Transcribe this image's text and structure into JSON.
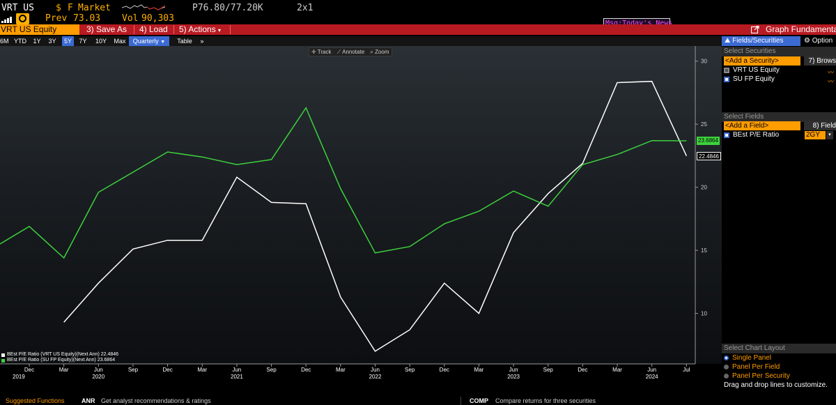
{
  "ticker": {
    "symbol": "VRT US",
    "currency": "$",
    "source_flag": "F",
    "market_label": "Market",
    "prev_label": "Prev",
    "prev_value": "73.03",
    "vol_label": "Vol",
    "vol_value": "90,303",
    "price_range": "P76.80/77.20K",
    "size": "2x1"
  },
  "command_bar": {
    "security": "VRT US Equity",
    "save_as": "3) Save As",
    "load": "4) Load",
    "actions": "5) Actions",
    "actions_arrow": "▾",
    "news": "Msg:Today's News",
    "graph_title": "Graph Fundamental"
  },
  "periods": [
    {
      "label": "6M",
      "active": false
    },
    {
      "label": "YTD",
      "active": false
    },
    {
      "label": "1Y",
      "active": false
    },
    {
      "label": "3Y",
      "active": false
    },
    {
      "label": "5Y",
      "active": true
    },
    {
      "label": "7Y",
      "active": false
    },
    {
      "label": "10Y",
      "active": false
    },
    {
      "label": "Max",
      "active": false
    }
  ],
  "frequency": "Quarterly",
  "frequency_arrow": "▼",
  "table_label": "Table",
  "more_label": "»",
  "chart_tools": {
    "track": "Track",
    "annotate": "Annotate",
    "zoom": "Zoom"
  },
  "chart_data": {
    "type": "line",
    "ylim": [
      6,
      31.2
    ],
    "yticks": [
      10,
      15,
      20,
      25,
      30
    ],
    "x_ticks": [
      "Dec",
      "Mar",
      "Jun",
      "Sep",
      "Dec",
      "Mar",
      "Jun",
      "Sep",
      "Dec",
      "Mar",
      "Jun",
      "Sep",
      "Dec",
      "Mar",
      "Jun",
      "Sep",
      "Dec",
      "Mar",
      "Jun",
      "Jul"
    ],
    "years": [
      {
        "label": "2019",
        "tick": 0
      },
      {
        "label": "2020",
        "tick": 2
      },
      {
        "label": "2021",
        "tick": 6
      },
      {
        "label": "2022",
        "tick": 10
      },
      {
        "label": "2023",
        "tick": 14
      },
      {
        "label": "2024",
        "tick": 18
      }
    ],
    "series": [
      {
        "name": "BEst P/E Ratio (VRT US Equity)(Next Ann)",
        "color": "#ffffff",
        "last_value": "22.4846",
        "points": [
          [
            1,
            9.3
          ],
          [
            2,
            12.4
          ],
          [
            3,
            15.1
          ],
          [
            4,
            15.8
          ],
          [
            5,
            15.8
          ],
          [
            6,
            20.8
          ],
          [
            7,
            18.8
          ],
          [
            8,
            18.7
          ],
          [
            9,
            11.3
          ],
          [
            10,
            7.0
          ],
          [
            11,
            8.7
          ],
          [
            12,
            12.4
          ],
          [
            13,
            10.0
          ],
          [
            14,
            16.4
          ],
          [
            15,
            19.5
          ],
          [
            16,
            21.9
          ],
          [
            17,
            28.3
          ],
          [
            18,
            28.4
          ],
          [
            19,
            22.4846
          ]
        ]
      },
      {
        "name": "BEst P/E Ratio (SU FP Equity)(Next Ann)",
        "color": "#3dd13d",
        "last_value": "23.6864",
        "points": [
          [
            -0.85,
            15.5
          ],
          [
            0,
            16.9
          ],
          [
            1,
            14.4
          ],
          [
            2,
            19.6
          ],
          [
            3,
            21.2
          ],
          [
            4,
            22.8
          ],
          [
            5,
            22.4
          ],
          [
            6,
            21.8
          ],
          [
            7,
            22.2
          ],
          [
            8,
            26.3
          ],
          [
            9,
            19.9
          ],
          [
            10,
            14.8
          ],
          [
            11,
            15.3
          ],
          [
            12,
            17.1
          ],
          [
            13,
            18.1
          ],
          [
            14,
            19.7
          ],
          [
            15,
            18.5
          ],
          [
            16,
            21.8
          ],
          [
            17,
            22.6
          ],
          [
            18,
            23.7
          ],
          [
            19,
            23.6864
          ]
        ]
      }
    ]
  },
  "legend": [
    {
      "text": "BEst P/E Ratio (VRT US Equity)(Next Ann)",
      "value": "22.4846",
      "color": "#ffffff"
    },
    {
      "text": "BEst P/E Ratio (SU FP Equity)(Next Ann)",
      "value": "23.6864",
      "color": "#3dd13d"
    }
  ],
  "right_panel": {
    "tab_fields": "Fields/Securities",
    "tab_options": "Option",
    "select_securities": "Select Securities",
    "add_security": "<Add a Security>",
    "browse": "7) Brows",
    "securities": [
      {
        "label": "VRT US Equity",
        "checked_style": "grey"
      },
      {
        "label": "SU FP Equity",
        "checked_style": "on"
      }
    ],
    "select_fields": "Select Fields",
    "add_field": "<Add a Field>",
    "fields_btn": "8) Field",
    "fields": [
      {
        "label": "BEst P/E Ratio",
        "period": "2GY"
      }
    ],
    "select_layout": "Select Chart Layout",
    "layouts": [
      {
        "label": "Single Panel",
        "selected": true
      },
      {
        "label": "Panel Per Field",
        "selected": false
      },
      {
        "label": "Panel Per Security",
        "selected": false
      }
    ],
    "drag_hint": "Drag and drop lines to customize."
  },
  "bottom_bar": {
    "suggested": "Suggested Functions",
    "anr_code": "ANR",
    "anr_desc": "Get analyst recommendations & ratings",
    "comp_code": "COMP",
    "comp_desc": "Compare returns for three securities"
  }
}
